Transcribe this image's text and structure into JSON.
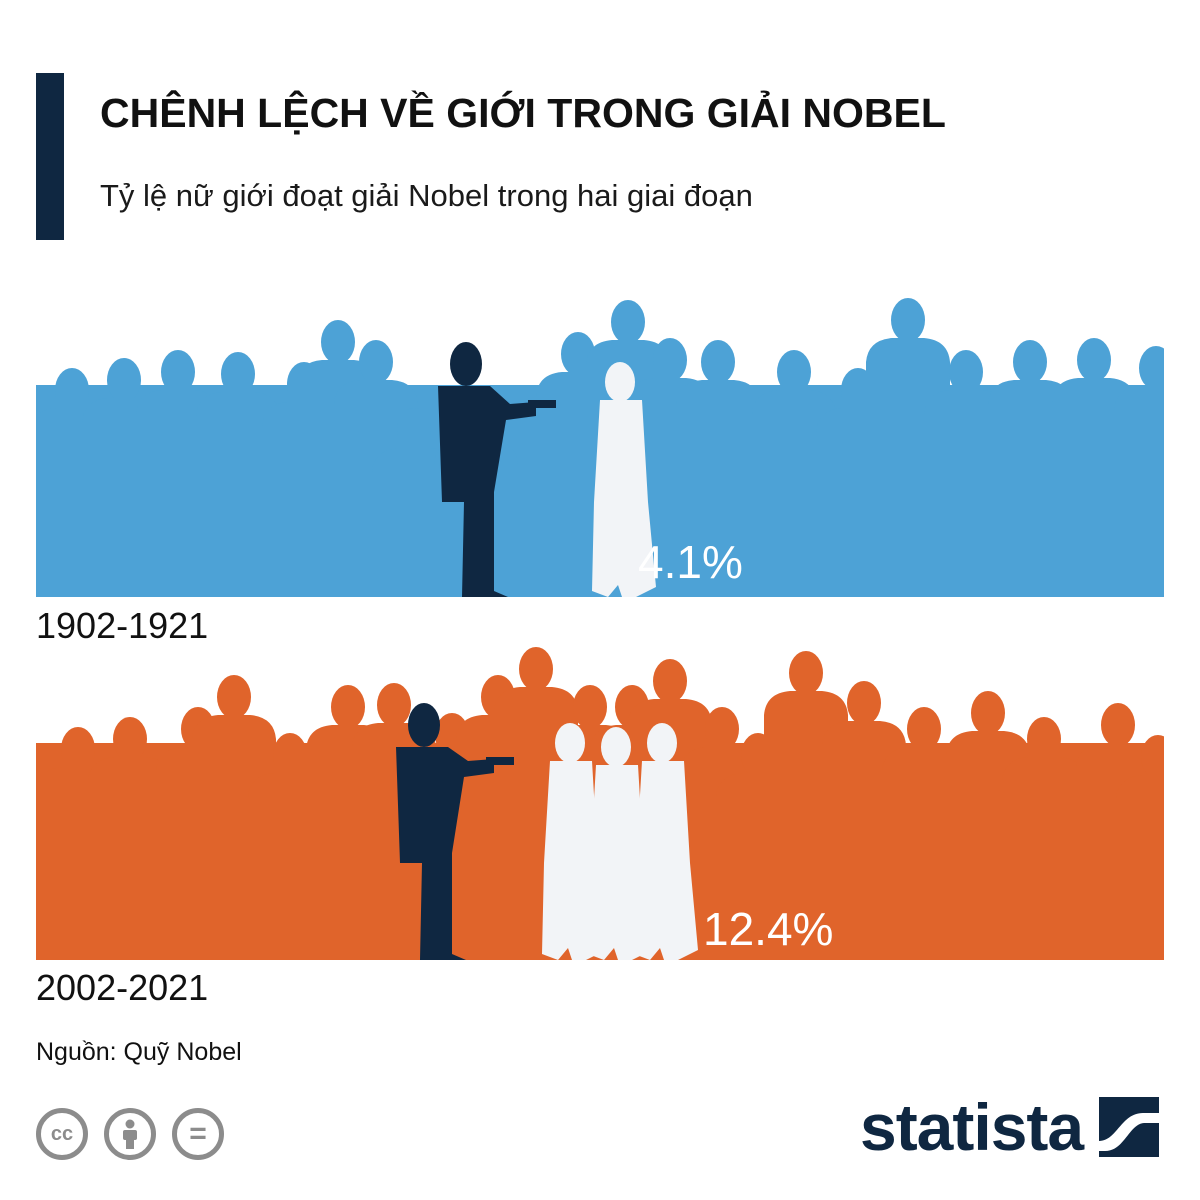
{
  "header": {
    "title": "CHÊNH LỆCH VỀ GIỚI TRONG GIẢI NOBEL",
    "subtitle": "Tỷ lệ nữ giới đoạt giải Nobel trong hai giai đoạn"
  },
  "chart_data": {
    "type": "bar",
    "title": "CHÊNH LỆCH VỀ GIỚI TRONG GIẢI NOBEL",
    "subtitle": "Tỷ lệ nữ giới đoạt giải Nobel trong hai giai đoạn",
    "categories": [
      "1902-1921",
      "2002-2021"
    ],
    "values": [
      4.1,
      12.4
    ],
    "value_labels": [
      "4.1%",
      "12.4%"
    ],
    "women_silhouettes": [
      1,
      3
    ],
    "colors": [
      "#4da2d6",
      "#e0642b"
    ]
  },
  "footer": {
    "source": "Nguồn: Quỹ Nobel",
    "brand": "statista",
    "license_icons": [
      "cc-icon",
      "attribution-icon",
      "no-derivatives-icon"
    ],
    "cc_text": "cc",
    "nd_text": "="
  },
  "colors": {
    "navy": "#0f2741",
    "women": "#f2f4f7"
  }
}
